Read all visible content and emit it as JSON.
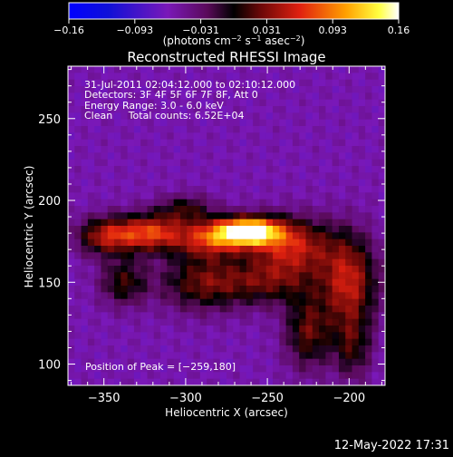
{
  "chart_data": {
    "type": "heatmap",
    "title": "Reconstructed RHESSI Image",
    "xlabel": "Heliocentric X (arcsec)",
    "ylabel": "Heliocentric Y (arcsec)",
    "xlim": [
      -372,
      -178
    ],
    "ylim": [
      87,
      282
    ],
    "x_ticks": [
      -350,
      -300,
      -250,
      -200
    ],
    "x_tick_labels": [
      "−350",
      "−300",
      "−250",
      "−200"
    ],
    "y_ticks": [
      100,
      150,
      200,
      250
    ],
    "y_tick_labels": [
      "100",
      "150",
      "200",
      "250"
    ],
    "colorbar": {
      "range": [
        -0.16,
        0.16
      ],
      "tick_labels": [
        "−0.16",
        "−0.093",
        "−0.031",
        "0.031",
        "0.093",
        "0.16"
      ],
      "unit_label": "(photons cm",
      "unit_exp1": "−2",
      "unit_mid": " s",
      "unit_exp2": "−1",
      "unit_mid2": " asec",
      "unit_exp3": "−2",
      "unit_close": ")"
    },
    "annotations": [
      "31-Jul-2011 02:04:12.000 to 02:10:12.000",
      "Detectors: 3F 4F 5F 6F 7F 8F, Att 0",
      "Energy Range: 3.0 - 6.0 keV",
      "Clean     Total counts: 6.52E+04"
    ],
    "peak_text": "Position of Peak = [−259,180]",
    "peak": {
      "x": -259,
      "y": 180,
      "value": 0.16
    },
    "background_level": -0.06,
    "sources": [
      {
        "x": -262,
        "y": 181,
        "sx": 14,
        "sy": 6,
        "amp": 0.22
      },
      {
        "x": -285,
        "y": 176,
        "sx": 14,
        "sy": 8,
        "amp": 0.1
      },
      {
        "x": -322,
        "y": 180,
        "sx": 16,
        "sy": 8,
        "amp": 0.13
      },
      {
        "x": -350,
        "y": 178,
        "sx": 12,
        "sy": 8,
        "amp": 0.09
      },
      {
        "x": -235,
        "y": 172,
        "sx": 18,
        "sy": 12,
        "amp": 0.11
      },
      {
        "x": -200,
        "y": 150,
        "sx": 12,
        "sy": 20,
        "amp": 0.11
      },
      {
        "x": -290,
        "y": 150,
        "sx": 18,
        "sy": 12,
        "amp": 0.08
      },
      {
        "x": -250,
        "y": 150,
        "sx": 20,
        "sy": 10,
        "amp": 0.07
      },
      {
        "x": -338,
        "y": 150,
        "sx": 10,
        "sy": 10,
        "amp": 0.07
      },
      {
        "x": -225,
        "y": 120,
        "sx": 10,
        "sy": 16,
        "amp": 0.08
      },
      {
        "x": -198,
        "y": 110,
        "sx": 8,
        "sy": 14,
        "amp": 0.06
      },
      {
        "x": -300,
        "y": 195,
        "sx": 12,
        "sy": 6,
        "amp": 0.06
      }
    ]
  },
  "footer": {
    "timestamp": "12-May-2022 17:31"
  }
}
